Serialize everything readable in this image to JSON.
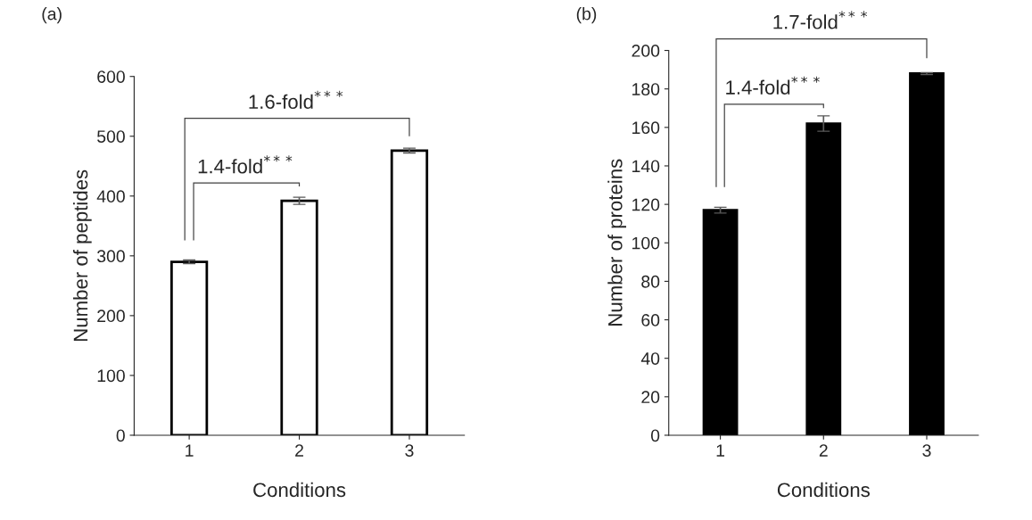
{
  "chart_data": [
    {
      "type": "bar",
      "title": "(a)",
      "xlabel": "Conditions",
      "ylabel": "Number of peptides",
      "categories": [
        "1",
        "2",
        "3"
      ],
      "series": [
        {
          "color": "#ffffff",
          "values": [
            290,
            392,
            476
          ],
          "errors": [
            3,
            6,
            4
          ]
        }
      ],
      "ylim": [
        0,
        600
      ],
      "yticks": [
        0,
        100,
        200,
        300,
        400,
        500,
        600
      ],
      "grid": false,
      "legend": false,
      "annotations": [
        "1.4-fold$^{***}$",
        "1.6-fold$^{***}$"
      ]
    },
    {
      "type": "bar",
      "title": "(b)",
      "xlabel": "Conditions",
      "ylabel": "Number of proteins",
      "categories": [
        "1",
        "2",
        "3"
      ],
      "series": [
        {
          "color": "#000000",
          "values": [
            117,
            162,
            188
          ],
          "errors": [
            1.5,
            4,
            0.5
          ]
        }
      ],
      "ylim": [
        0,
        200
      ],
      "yticks": [
        0,
        20,
        40,
        60,
        80,
        100,
        120,
        140,
        160,
        180,
        200
      ],
      "grid": false,
      "legend": false,
      "annotations": [
        "1.4-fold$^{***}$",
        "1.7-fold$^{***}$"
      ]
    }
  ]
}
